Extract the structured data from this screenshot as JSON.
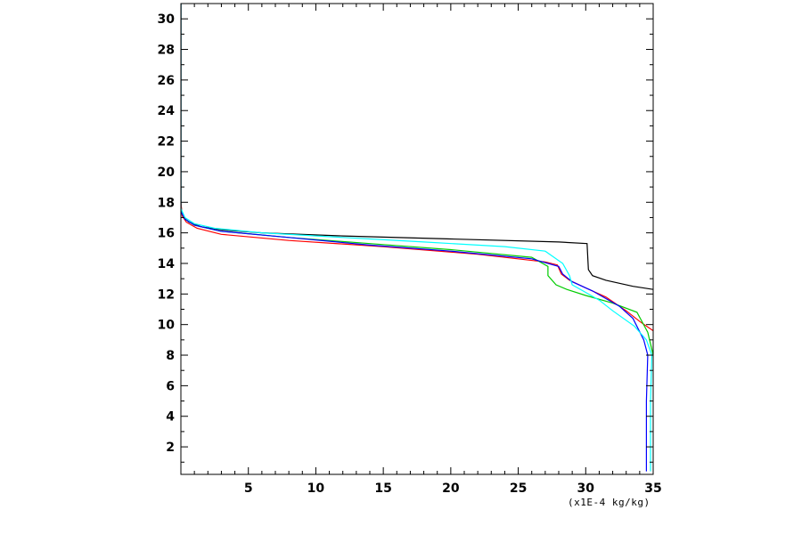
{
  "chart_data": {
    "type": "line",
    "title": "",
    "xlabel": "",
    "ylabel": "",
    "x_unit_label": "(x1E-4 kg/kg)",
    "xlim": [
      0,
      35
    ],
    "ylim": [
      0.2,
      31
    ],
    "x_ticks": [
      5,
      10,
      15,
      20,
      25,
      30,
      35
    ],
    "x_tick_labels": [
      "5",
      "10",
      "15",
      "20",
      "25",
      "30",
      "35"
    ],
    "y_ticks": [
      2,
      4,
      6,
      8,
      10,
      12,
      14,
      16,
      18,
      20,
      22,
      24,
      26,
      28,
      30
    ],
    "y_tick_labels": [
      "2",
      "4",
      "6",
      "8",
      "10",
      "12",
      "14",
      "16",
      "18",
      "20",
      "22",
      "24",
      "26",
      "28",
      "30"
    ],
    "grid": false,
    "legend": "none",
    "series": [
      {
        "color": "#000000",
        "points": [
          [
            35.0,
            12.3
          ],
          [
            33.5,
            12.5
          ],
          [
            31.5,
            12.9
          ],
          [
            30.5,
            13.2
          ],
          [
            30.2,
            13.6
          ],
          [
            30.1,
            15.3
          ],
          [
            28.0,
            15.4
          ],
          [
            20.0,
            15.6
          ],
          [
            12.0,
            15.8
          ],
          [
            6.0,
            16.0
          ],
          [
            3.0,
            16.2
          ],
          [
            1.5,
            16.4
          ],
          [
            0.6,
            16.7
          ],
          [
            0.2,
            17.0
          ],
          [
            0.05,
            17.3
          ],
          [
            0.0,
            18.0
          ],
          [
            0.0,
            31.0
          ]
        ]
      },
      {
        "color": "#ff0000",
        "points": [
          [
            35.0,
            9.6
          ],
          [
            34.0,
            10.2
          ],
          [
            33.0,
            10.9
          ],
          [
            31.5,
            11.8
          ],
          [
            30.0,
            12.4
          ],
          [
            28.8,
            12.9
          ],
          [
            28.2,
            13.3
          ],
          [
            27.9,
            13.9
          ],
          [
            27.0,
            14.1
          ],
          [
            22.0,
            14.6
          ],
          [
            15.0,
            15.1
          ],
          [
            8.0,
            15.5
          ],
          [
            3.0,
            15.9
          ],
          [
            1.2,
            16.3
          ],
          [
            0.4,
            16.7
          ],
          [
            0.1,
            17.1
          ],
          [
            0.0,
            18.0
          ],
          [
            0.0,
            31.0
          ]
        ]
      },
      {
        "color": "#00cc00",
        "points": [
          [
            35.1,
            0.4
          ],
          [
            35.1,
            5.0
          ],
          [
            35.0,
            8.0
          ],
          [
            34.6,
            9.5
          ],
          [
            33.8,
            10.8
          ],
          [
            32.0,
            11.4
          ],
          [
            30.0,
            11.9
          ],
          [
            28.6,
            12.3
          ],
          [
            27.8,
            12.6
          ],
          [
            27.2,
            13.2
          ],
          [
            27.2,
            13.8
          ],
          [
            26.0,
            14.4
          ],
          [
            20.0,
            14.9
          ],
          [
            14.0,
            15.3
          ],
          [
            8.0,
            15.7
          ],
          [
            3.0,
            16.1
          ],
          [
            1.0,
            16.5
          ],
          [
            0.3,
            16.9
          ],
          [
            0.0,
            17.5
          ],
          [
            0.0,
            31.0
          ]
        ]
      },
      {
        "color": "#0000ff",
        "points": [
          [
            34.5,
            0.4
          ],
          [
            34.5,
            5.0
          ],
          [
            34.6,
            8.0
          ],
          [
            34.3,
            9.0
          ],
          [
            33.5,
            10.4
          ],
          [
            32.5,
            11.2
          ],
          [
            30.5,
            12.2
          ],
          [
            29.0,
            12.8
          ],
          [
            28.3,
            13.3
          ],
          [
            28.0,
            13.8
          ],
          [
            26.0,
            14.3
          ],
          [
            20.0,
            14.8
          ],
          [
            14.0,
            15.2
          ],
          [
            8.0,
            15.7
          ],
          [
            3.0,
            16.1
          ],
          [
            1.0,
            16.5
          ],
          [
            0.3,
            16.9
          ],
          [
            0.0,
            17.4
          ],
          [
            0.0,
            31.0
          ]
        ]
      },
      {
        "color": "#00ffff",
        "points": [
          [
            34.8,
            0.4
          ],
          [
            34.8,
            5.0
          ],
          [
            34.9,
            8.0
          ],
          [
            34.5,
            9.0
          ],
          [
            33.6,
            9.9
          ],
          [
            32.0,
            10.9
          ],
          [
            31.0,
            11.6
          ],
          [
            29.8,
            12.2
          ],
          [
            29.0,
            12.6
          ],
          [
            28.8,
            13.2
          ],
          [
            28.3,
            14.0
          ],
          [
            27.0,
            14.8
          ],
          [
            24.0,
            15.1
          ],
          [
            18.0,
            15.4
          ],
          [
            12.0,
            15.7
          ],
          [
            6.0,
            16.0
          ],
          [
            2.5,
            16.3
          ],
          [
            1.0,
            16.6
          ],
          [
            0.3,
            17.0
          ],
          [
            0.0,
            17.6
          ],
          [
            0.0,
            31.0
          ]
        ]
      }
    ]
  }
}
